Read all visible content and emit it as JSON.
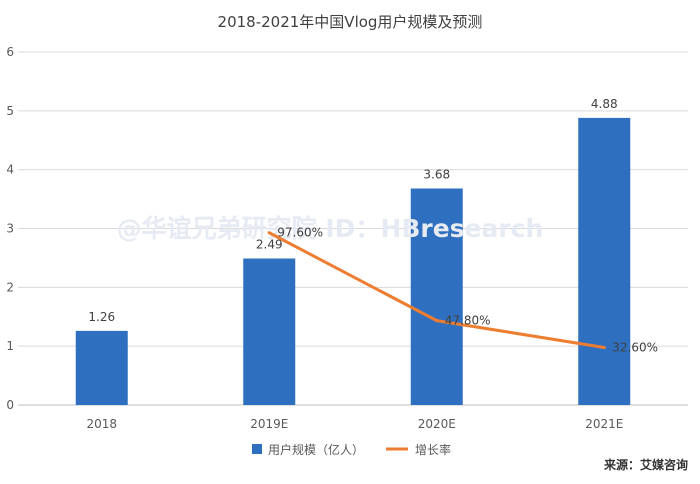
{
  "chart_data": {
    "type": "bar",
    "title": "2018-2021年中国Vlog用户规模及预测",
    "categories": [
      "2018",
      "2019E",
      "2020E",
      "2021E"
    ],
    "series": [
      {
        "name": "用户规模（亿人）",
        "type": "bar",
        "axis": "left",
        "values": [
          1.26,
          2.49,
          3.68,
          4.88
        ],
        "labels": [
          "1.26",
          "2.49",
          "3.68",
          "4.88"
        ],
        "color": "#2E6FBF"
      },
      {
        "name": "增长率",
        "type": "line",
        "axis": "secondary",
        "values": [
          null,
          97.6,
          47.8,
          32.6
        ],
        "labels": [
          "",
          "97.60%",
          "47.80%",
          "32.60%"
        ],
        "color": "#ED7D31"
      }
    ],
    "ylim": [
      0,
      6
    ],
    "yticks": [
      "0",
      "1",
      "2",
      "3",
      "4",
      "5",
      "6"
    ],
    "grid": true,
    "legend_position": "bottom"
  },
  "watermark": "@华谊兄弟研究院 ID：HBresearch",
  "source": "来源：艾媒咨询",
  "colors": {
    "grid": "#D9D9D9",
    "axis_text": "#595959",
    "title": "#404040"
  }
}
